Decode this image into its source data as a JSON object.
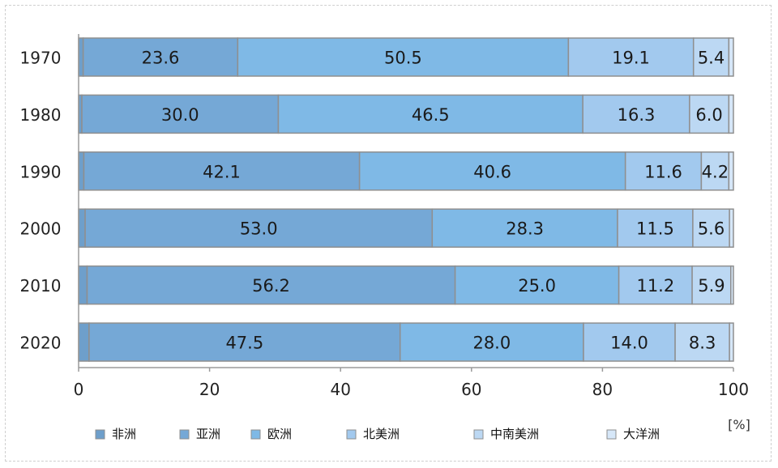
{
  "chart_data": {
    "type": "bar",
    "orientation": "horizontal",
    "stacked": true,
    "title": "",
    "xlabel": "",
    "ylabel": "",
    "unit_label": "[%]",
    "xlim": [
      0,
      100
    ],
    "xticks": [
      0,
      20,
      40,
      60,
      80,
      100
    ],
    "grid": false,
    "legend_position": "bottom",
    "categories": [
      "1970",
      "1980",
      "1990",
      "2000",
      "2010",
      "2020"
    ],
    "series": [
      {
        "name": "非洲",
        "color": "#6e9fcb",
        "values": [
          0.7,
          0.5,
          0.8,
          1.0,
          1.3,
          1.6
        ],
        "labels": [
          "",
          "",
          "",
          "",
          "",
          ""
        ]
      },
      {
        "name": "亚洲",
        "color": "#75a8d6",
        "values": [
          23.6,
          30.0,
          42.1,
          53.0,
          56.2,
          47.5
        ],
        "labels": [
          "23.6",
          "30.0",
          "42.1",
          "53.0",
          "56.2",
          "47.5"
        ]
      },
      {
        "name": "欧洲",
        "color": "#7fb9e6",
        "values": [
          50.5,
          46.5,
          40.6,
          28.3,
          25.0,
          28.0
        ],
        "labels": [
          "50.5",
          "46.5",
          "40.6",
          "28.3",
          "25.0",
          "28.0"
        ]
      },
      {
        "name": "北美洲",
        "color": "#a2c9ee",
        "values": [
          19.1,
          16.3,
          11.6,
          11.5,
          11.2,
          14.0
        ],
        "labels": [
          "19.1",
          "16.3",
          "11.6",
          "11.5",
          "11.2",
          "14.0"
        ]
      },
      {
        "name": "中南美洲",
        "color": "#bcd8f3",
        "values": [
          5.4,
          6.0,
          4.2,
          5.6,
          5.9,
          8.3
        ],
        "labels": [
          "5.4",
          "6.0",
          "4.2",
          "5.6",
          "5.9",
          "8.3"
        ]
      },
      {
        "name": "大洋洲",
        "color": "#d6e7f8",
        "values": [
          0.7,
          0.7,
          0.7,
          0.6,
          0.4,
          0.6
        ],
        "labels": [
          "",
          "",
          "",
          "",
          "",
          ""
        ]
      }
    ]
  }
}
